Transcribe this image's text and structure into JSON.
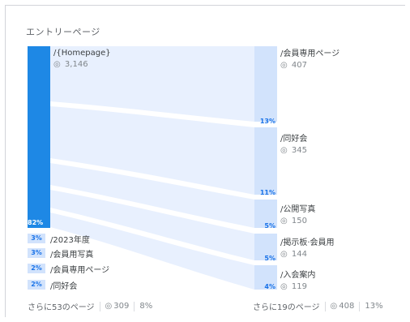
{
  "title": "エントリーページ",
  "source": {
    "label": "/{Homepage}",
    "views": "3,146",
    "pct": "82%"
  },
  "destinations": [
    {
      "label": "/会員専用ページ",
      "views": "407",
      "pct": "13%"
    },
    {
      "label": "/同好会",
      "views": "345",
      "pct": "11%"
    },
    {
      "label": "/公開写真",
      "views": "150",
      "pct": "5%"
    },
    {
      "label": "/掲示板·会員用",
      "views": "144",
      "pct": "5%"
    },
    {
      "label": "/入会案内",
      "views": "119",
      "pct": "4%"
    }
  ],
  "other_entries": [
    {
      "pct": "3%",
      "label": "/2023年度"
    },
    {
      "pct": "3%",
      "label": "/会員用写真"
    },
    {
      "pct": "2%",
      "label": "/会員専用ページ"
    },
    {
      "pct": "2%",
      "label": "/同好会"
    }
  ],
  "footer_left": {
    "text": "さらに53のページ",
    "views": "309",
    "pct": "8%"
  },
  "footer_right": {
    "text": "さらに19のページ",
    "views": "408",
    "pct": "13%"
  },
  "colors": {
    "bar_dark": "#1e88e5",
    "bar_light": "#d2e3fc",
    "flow": "#e8f0fe",
    "accent": "#1a73e8"
  },
  "icons": {
    "views": "eye-icon"
  }
}
